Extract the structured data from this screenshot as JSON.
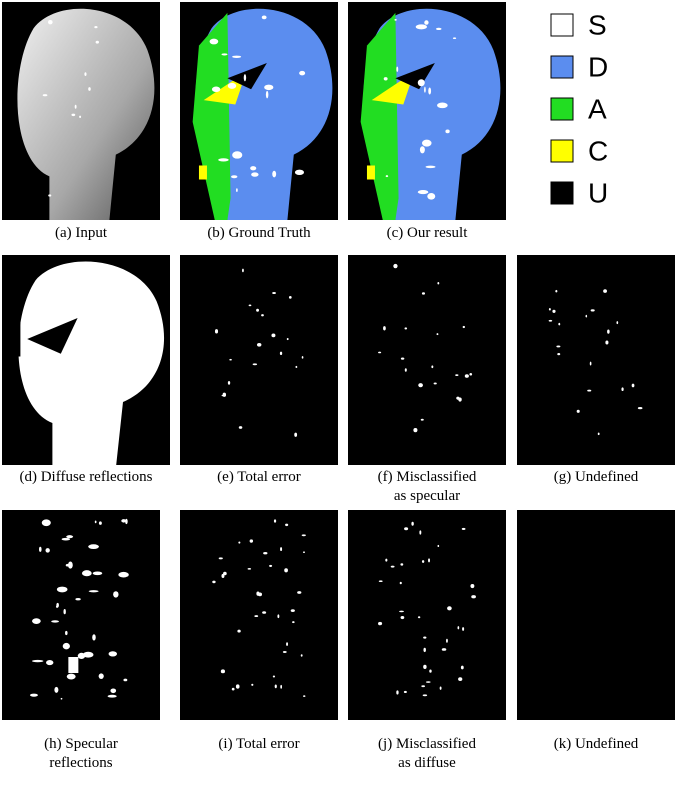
{
  "legend": [
    {
      "label": "S",
      "color": "#ffffff"
    },
    {
      "label": "D",
      "color": "#5b8def"
    },
    {
      "label": "A",
      "color": "#22dd22"
    },
    {
      "label": "C",
      "color": "#ffff00"
    },
    {
      "label": "U",
      "color": "#000000"
    }
  ],
  "panels": [
    {
      "caption": [
        "(a) Input"
      ]
    },
    {
      "caption": [
        "(b) Ground Truth"
      ]
    },
    {
      "caption": [
        "(c) Our result"
      ]
    },
    {
      "caption": [
        "(d) Diffuse reflections"
      ]
    },
    {
      "caption": [
        "(e) Total error"
      ]
    },
    {
      "caption": [
        "(f) Misclassified",
        "as specular"
      ]
    },
    {
      "caption": [
        "(g) Undefined"
      ]
    },
    {
      "caption": [
        "(h) Specular",
        "reflections"
      ]
    },
    {
      "caption": [
        "(i) Total error"
      ]
    },
    {
      "caption": [
        "(j) Misclassified",
        "as diffuse"
      ]
    },
    {
      "caption": [
        "(k) Undefined"
      ]
    }
  ]
}
